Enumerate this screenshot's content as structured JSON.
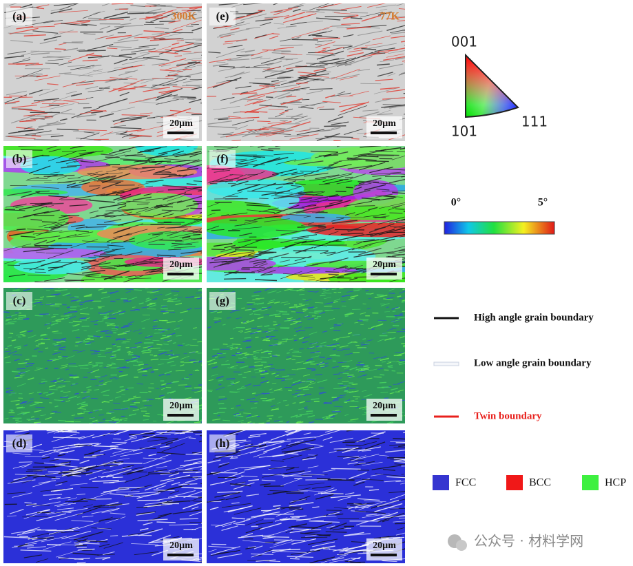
{
  "panels": [
    {
      "label": "(a)",
      "temperature": "300K",
      "scale_bar": "20µm"
    },
    {
      "label": "(b)",
      "scale_bar": "20µm"
    },
    {
      "label": "(c)",
      "scale_bar": "20µm"
    },
    {
      "label": "(d)",
      "scale_bar": "20µm"
    },
    {
      "label": "(e)",
      "temperature": "77K",
      "scale_bar": "20µm"
    },
    {
      "label": "(f)",
      "scale_bar": "20µm"
    },
    {
      "label": "(g)",
      "scale_bar": "20µm"
    },
    {
      "label": "(h)",
      "scale_bar": "20µm"
    }
  ],
  "ipf_legend": {
    "top": "001",
    "bottom_left": "101",
    "bottom_right": "111"
  },
  "kam_legend": {
    "min": "0°",
    "max": "5°"
  },
  "boundary_legend": [
    {
      "label": "High angle grain boundary",
      "color": "#111111",
      "text_color": "#111111"
    },
    {
      "label": "Low angle grain boundary",
      "color": "#f4f6fa",
      "text_color": "#111111"
    },
    {
      "label": "Twin boundary",
      "color": "#e8201c",
      "text_color": "#e8201c"
    }
  ],
  "phase_legend": [
    {
      "label": "FCC",
      "color": "#3535d0"
    },
    {
      "label": "BCC",
      "color": "#f01818"
    },
    {
      "label": "HCP",
      "color": "#3ef040"
    }
  ],
  "watermark": "公众号 · 材料学网"
}
